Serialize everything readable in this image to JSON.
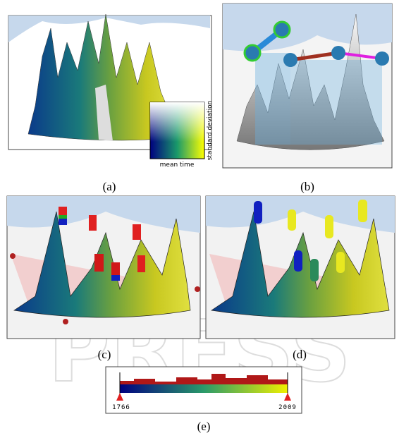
{
  "watermark": "PRESS",
  "panels": {
    "a": {
      "caption": "(a)",
      "legend": {
        "y_label": "standard deviation",
        "x_label": "mean time"
      }
    },
    "b": {
      "caption": "(b)"
    },
    "c": {
      "caption": "(c)"
    },
    "d": {
      "caption": "(d)"
    },
    "e": {
      "caption": "(e)",
      "range_start": "1766",
      "range_end": "2009"
    }
  }
}
